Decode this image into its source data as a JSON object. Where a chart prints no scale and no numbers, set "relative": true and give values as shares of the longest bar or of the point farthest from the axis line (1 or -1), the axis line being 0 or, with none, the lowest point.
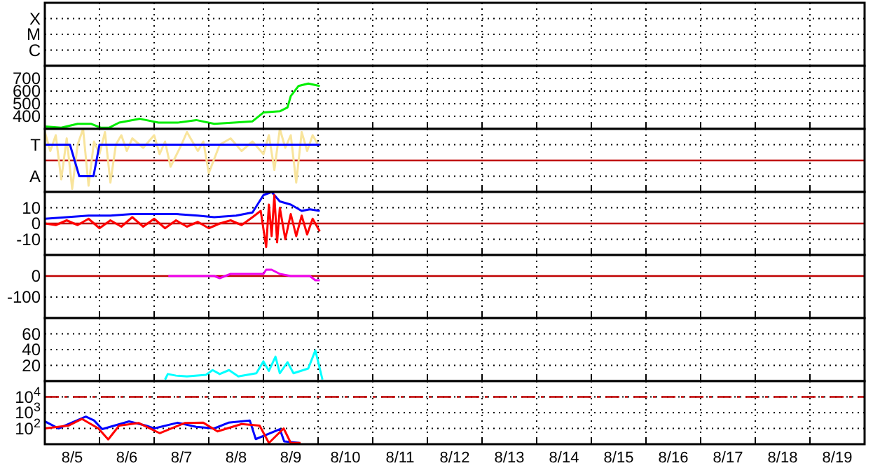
{
  "chart_data": [
    {
      "type": "other",
      "annotations": [
        "X",
        "M",
        "C"
      ]
    },
    {
      "type": "line",
      "ylim": [
        300,
        800
      ],
      "yticks": [
        400,
        500,
        600,
        700
      ],
      "xlim": [
        "--08-05T00:00",
        "--08-20T00:00"
      ],
      "xticks": [
        {
          "value": "--08-06T00:00",
          "label": null
        },
        {
          "value": "--08-07T00:00",
          "label": null
        },
        {
          "value": "--08-08T00:00",
          "label": null
        },
        {
          "value": "--08-09T00:00",
          "label": null
        },
        {
          "value": "--08-10T00:00",
          "label": null
        },
        {
          "value": "--08-11T00:00",
          "label": null
        },
        {
          "value": "--08-12T00:00",
          "label": null
        },
        {
          "value": "--08-13T00:00",
          "label": null
        },
        {
          "value": "--08-14T00:00",
          "label": null
        },
        {
          "value": "--08-15T00:00",
          "label": null
        },
        {
          "value": "--08-16T00:00",
          "label": null
        },
        {
          "value": "--08-17T00:00",
          "label": null
        },
        {
          "value": "--08-18T00:00",
          "label": null
        },
        {
          "value": "--08-19T00:00",
          "label": null
        }
      ],
      "tick_labels": "y",
      "grid": true,
      "series": [
        {
          "color": "#00ee00",
          "x": [
            "--08-05T00:00",
            "--08-05T07:12",
            "--08-05T14:24",
            "--08-05T20:24",
            "--08-06T00:30",
            "--08-06T04:19",
            "--08-06T08:38",
            "--08-06T17:46",
            "--08-07T01:55",
            "--08-07T10:19",
            "--08-07T18:29",
            "--08-08T02:24",
            "--08-08T11:02",
            "--08-08T19:12",
            "--08-09T00:00",
            "--08-09T07:12",
            "--08-09T10:34",
            "--08-09T12:00",
            "--08-09T15:22",
            "--08-09T19:41",
            "--08-10T00:45"
          ],
          "values": [
            320,
            310,
            340,
            340,
            310,
            310,
            350,
            380,
            350,
            350,
            370,
            340,
            350,
            360,
            430,
            440,
            470,
            560,
            640,
            660,
            640
          ]
        }
      ]
    },
    {
      "type": "line",
      "relative": true,
      "annotations": [
        "T",
        "A"
      ],
      "xlim": [
        "--08-05T00:00",
        "--08-20T00:00"
      ],
      "xticks": [
        {
          "value": "--08-06T00:00",
          "label": null
        },
        {
          "value": "--08-07T00:00",
          "label": null
        },
        {
          "value": "--08-08T00:00",
          "label": null
        },
        {
          "value": "--08-09T00:00",
          "label": null
        },
        {
          "value": "--08-10T00:00",
          "label": null
        },
        {
          "value": "--08-11T00:00",
          "label": null
        },
        {
          "value": "--08-12T00:00",
          "label": null
        },
        {
          "value": "--08-13T00:00",
          "label": null
        },
        {
          "value": "--08-14T00:00",
          "label": null
        },
        {
          "value": "--08-15T00:00",
          "label": null
        },
        {
          "value": "--08-16T00:00",
          "label": null
        },
        {
          "value": "--08-17T00:00",
          "label": null
        },
        {
          "value": "--08-18T00:00",
          "label": null
        },
        {
          "value": "--08-19T00:00",
          "label": null
        }
      ],
      "tick_labels": "y",
      "grid": true,
      "ref_lines": [
        {
          "axis": "y",
          "value": 0,
          "label": null,
          "color": "#c00000"
        }
      ],
      "series": [
        {
          "color": "#f8e49c",
          "x": [
            "--08-05T00:00",
            "--08-05T02:24",
            "--08-05T04:48",
            "--08-05T07:12",
            "--08-05T09:36",
            "--08-05T12:00",
            "--08-05T14:24",
            "--08-05T16:48",
            "--08-05T19:12",
            "--08-05T21:36",
            "--08-06T00:00",
            "--08-06T02:24",
            "--08-06T04:48",
            "--08-06T07:12",
            "--08-06T09:36",
            "--08-06T12:00",
            "--08-06T14:24",
            "--08-06T19:12",
            "--08-07T00:00",
            "--08-07T02:24",
            "--08-07T04:48",
            "--08-07T07:12",
            "--08-07T12:00",
            "--08-07T14:24",
            "--08-07T19:12",
            "--08-07T21:36",
            "--08-08T00:00",
            "--08-08T04:48",
            "--08-08T09:36",
            "--08-08T14:24",
            "--08-08T19:12",
            "--08-09T00:00",
            "--08-09T02:24",
            "--08-09T04:48",
            "--08-09T07:12",
            "--08-09T09:36",
            "--08-09T12:00",
            "--08-09T14:24",
            "--08-09T16:48",
            "--08-09T19:12",
            "--08-09T21:36",
            "--08-10T00:00"
          ],
          "values": [
            0.9,
            0.3,
            0.8,
            -0.6,
            0.7,
            -0.9,
            0.5,
            1.0,
            -0.8,
            0.6,
            0.2,
            0.9,
            -0.7,
            0.5,
            0.8,
            0.3,
            0.7,
            0.4,
            0.8,
            0.2,
            0.6,
            -0.2,
            0.5,
            0.9,
            0.3,
            0.6,
            -0.4,
            0.5,
            0.7,
            0.3,
            0.6,
            0.2,
            0.8,
            -0.3,
            1.0,
            0.4,
            0.8,
            -0.7,
            0.9,
            0.3,
            0.8,
            0.5
          ]
        },
        {
          "color": "#0000ff",
          "x": [
            "--08-05T00:00",
            "--08-05T11:02",
            "--08-05T15:07",
            "--08-05T21:22",
            "--08-06T00:00",
            "--08-10T00:45"
          ],
          "values": [
            0.5,
            0.5,
            -0.5,
            -0.5,
            0.5,
            0.5
          ]
        }
      ]
    },
    {
      "type": "line",
      "ylim": [
        -20,
        20
      ],
      "yticks": [
        10,
        0,
        -10
      ],
      "xlim": [
        "--08-05T00:00",
        "--08-20T00:00"
      ],
      "xticks": [
        {
          "value": "--08-06T00:00",
          "label": null
        },
        {
          "value": "--08-07T00:00",
          "label": null
        },
        {
          "value": "--08-08T00:00",
          "label": null
        },
        {
          "value": "--08-09T00:00",
          "label": null
        },
        {
          "value": "--08-10T00:00",
          "label": null
        },
        {
          "value": "--08-11T00:00",
          "label": null
        },
        {
          "value": "--08-12T00:00",
          "label": null
        },
        {
          "value": "--08-13T00:00",
          "label": null
        },
        {
          "value": "--08-14T00:00",
          "label": null
        },
        {
          "value": "--08-15T00:00",
          "label": null
        },
        {
          "value": "--08-16T00:00",
          "label": null
        },
        {
          "value": "--08-17T00:00",
          "label": null
        },
        {
          "value": "--08-18T00:00",
          "label": null
        },
        {
          "value": "--08-19T00:00",
          "label": null
        }
      ],
      "tick_labels": "y",
      "grid": true,
      "ref_lines": [
        {
          "axis": "y",
          "value": 0,
          "label": null,
          "color": "#c00000"
        }
      ],
      "series": [
        {
          "color": "#0000ff",
          "x": [
            "--08-05T00:00",
            "--08-05T09:36",
            "--08-05T19:12",
            "--08-06T04:48",
            "--08-06T14:24",
            "--08-07T00:00",
            "--08-07T09:36",
            "--08-07T19:12",
            "--08-08T02:24",
            "--08-08T12:00",
            "--08-08T19:12",
            "--08-09T00:00",
            "--08-09T03:36",
            "--08-09T07:12",
            "--08-09T12:00",
            "--08-09T16:48",
            "--08-09T20:24",
            "--08-10T00:45"
          ],
          "values": [
            3,
            4,
            5,
            5,
            6,
            6,
            6,
            5,
            4,
            5,
            7,
            18,
            20,
            14,
            12,
            8,
            9,
            8
          ]
        },
        {
          "color": "#ff0000",
          "x": [
            "--08-05T00:00",
            "--08-05T04:48",
            "--08-05T09:36",
            "--08-05T14:24",
            "--08-05T19:12",
            "--08-06T00:00",
            "--08-06T04:48",
            "--08-06T09:36",
            "--08-06T14:24",
            "--08-06T19:12",
            "--08-07T00:00",
            "--08-07T04:48",
            "--08-07T09:36",
            "--08-07T14:24",
            "--08-07T19:12",
            "--08-08T00:00",
            "--08-08T04:48",
            "--08-08T09:36",
            "--08-08T14:24",
            "--08-08T19:12",
            "--08-08T22:48",
            "--08-09T01:12",
            "--08-09T02:24",
            "--08-09T03:36",
            "--08-09T04:48",
            "--08-09T06:00",
            "--08-09T07:12",
            "--08-09T09:36",
            "--08-09T12:00",
            "--08-09T14:24",
            "--08-09T16:48",
            "--08-09T19:12",
            "--08-09T21:36",
            "--08-10T00:45"
          ],
          "values": [
            0,
            -1,
            2,
            -1,
            3,
            -3,
            2,
            -2,
            4,
            -2,
            3,
            -3,
            2,
            -2,
            1,
            -3,
            0,
            2,
            -1,
            4,
            8,
            -15,
            12,
            -8,
            18,
            -12,
            10,
            -10,
            6,
            -8,
            5,
            -7,
            3,
            -5
          ]
        }
      ]
    },
    {
      "type": "line",
      "ylim": [
        -200,
        100
      ],
      "yticks": [
        0,
        -100
      ],
      "xlim": [
        "--08-05T00:00",
        "--08-20T00:00"
      ],
      "xticks": [
        {
          "value": "--08-06T00:00",
          "label": null
        },
        {
          "value": "--08-07T00:00",
          "label": null
        },
        {
          "value": "--08-08T00:00",
          "label": null
        },
        {
          "value": "--08-09T00:00",
          "label": null
        },
        {
          "value": "--08-10T00:00",
          "label": null
        },
        {
          "value": "--08-11T00:00",
          "label": null
        },
        {
          "value": "--08-12T00:00",
          "label": null
        },
        {
          "value": "--08-13T00:00",
          "label": null
        },
        {
          "value": "--08-14T00:00",
          "label": null
        },
        {
          "value": "--08-15T00:00",
          "label": null
        },
        {
          "value": "--08-16T00:00",
          "label": null
        },
        {
          "value": "--08-17T00:00",
          "label": null
        },
        {
          "value": "--08-18T00:00",
          "label": null
        },
        {
          "value": "--08-19T00:00",
          "label": null
        }
      ],
      "tick_labels": "y",
      "grid": true,
      "ref_lines": [
        {
          "axis": "y",
          "value": 0,
          "label": null,
          "color": "#c00000"
        }
      ],
      "series": [
        {
          "color": "#ee00ee",
          "x": [
            "--08-07T06:14",
            "--08-07T07:12",
            "--08-07T16:48",
            "--08-08T02:24",
            "--08-08T04:48",
            "--08-08T09:36",
            "--08-08T14:24",
            "--08-09T00:00",
            "--08-09T01:12",
            "--08-09T03:36",
            "--08-09T07:12",
            "--08-09T12:00",
            "--08-09T16:48",
            "--08-09T20:24",
            "--08-09T22:48",
            "--08-10T00:45"
          ],
          "values": [
            0,
            0,
            0,
            0,
            -10,
            10,
            10,
            10,
            30,
            30,
            10,
            0,
            0,
            0,
            -20,
            -20
          ]
        }
      ]
    },
    {
      "type": "line",
      "ylim": [
        0,
        80
      ],
      "yticks": [
        20,
        40,
        60
      ],
      "xlim": [
        "--08-05T00:00",
        "--08-20T00:00"
      ],
      "xticks": [
        {
          "value": "--08-06T00:00",
          "label": null
        },
        {
          "value": "--08-07T00:00",
          "label": null
        },
        {
          "value": "--08-08T00:00",
          "label": null
        },
        {
          "value": "--08-09T00:00",
          "label": null
        },
        {
          "value": "--08-10T00:00",
          "label": null
        },
        {
          "value": "--08-11T00:00",
          "label": null
        },
        {
          "value": "--08-12T00:00",
          "label": null
        },
        {
          "value": "--08-13T00:00",
          "label": null
        },
        {
          "value": "--08-14T00:00",
          "label": null
        },
        {
          "value": "--08-15T00:00",
          "label": null
        },
        {
          "value": "--08-16T00:00",
          "label": null
        },
        {
          "value": "--08-17T00:00",
          "label": null
        },
        {
          "value": "--08-18T00:00",
          "label": null
        },
        {
          "value": "--08-19T00:00",
          "label": null
        }
      ],
      "tick_labels": "y",
      "grid": true,
      "series": [
        {
          "color": "#00ffff",
          "x": [
            "--08-07T04:48",
            "--08-07T06:00",
            "--08-07T09:36",
            "--08-07T14:24",
            "--08-07T22:48",
            "--08-08T01:40",
            "--08-08T04:48",
            "--08-08T08:53",
            "--08-08T12:58",
            "--08-08T20:53",
            "--08-09T00:00",
            "--08-09T02:24",
            "--08-09T05:17",
            "--08-09T07:12",
            "--08-09T10:34",
            "--08-09T13:12",
            "--08-09T19:41",
            "--08-09T22:48",
            "--08-10T01:55"
          ],
          "values": [
            2,
            9,
            7,
            6,
            8,
            14,
            9,
            14,
            6,
            10,
            25,
            13,
            31,
            10,
            24,
            10,
            16,
            39,
            2
          ]
        }
      ]
    },
    {
      "type": "line",
      "log": true,
      "ylim": [
        10,
        100000
      ],
      "yticks": [
        {
          "value": 100,
          "label": "10$^{2}$"
        },
        {
          "value": 1000,
          "label": "10$^{3}$"
        },
        {
          "value": 10000,
          "label": "10$^{4}$"
        }
      ],
      "xlim": [
        "--08-05T00:00",
        "--08-20T00:00"
      ],
      "xticks": [
        {
          "value": "--08-05T12:00",
          "label": "8/5"
        },
        {
          "value": "--08-06T00:00",
          "label": null
        },
        {
          "value": "--08-06T12:00",
          "label": "8/6"
        },
        {
          "value": "--08-07T00:00",
          "label": null
        },
        {
          "value": "--08-07T12:00",
          "label": "8/7"
        },
        {
          "value": "--08-08T00:00",
          "label": null
        },
        {
          "value": "--08-08T12:00",
          "label": "8/8"
        },
        {
          "value": "--08-09T00:00",
          "label": null
        },
        {
          "value": "--08-09T12:00",
          "label": "8/9"
        },
        {
          "value": "--08-10T00:00",
          "label": null
        },
        {
          "value": "--08-10T12:00",
          "label": "8/10"
        },
        {
          "value": "--08-11T00:00",
          "label": null
        },
        {
          "value": "--08-11T12:00",
          "label": "8/11"
        },
        {
          "value": "--08-12T00:00",
          "label": null
        },
        {
          "value": "--08-12T12:00",
          "label": "8/12"
        },
        {
          "value": "--08-13T00:00",
          "label": null
        },
        {
          "value": "--08-13T12:00",
          "label": "8/13"
        },
        {
          "value": "--08-14T00:00",
          "label": null
        },
        {
          "value": "--08-14T12:00",
          "label": "8/14"
        },
        {
          "value": "--08-15T00:00",
          "label": null
        },
        {
          "value": "--08-15T12:00",
          "label": "8/15"
        },
        {
          "value": "--08-16T00:00",
          "label": null
        },
        {
          "value": "--08-16T12:00",
          "label": "8/16"
        },
        {
          "value": "--08-17T00:00",
          "label": null
        },
        {
          "value": "--08-17T12:00",
          "label": "8/17"
        },
        {
          "value": "--08-18T00:00",
          "label": null
        },
        {
          "value": "--08-18T12:00",
          "label": "8/18"
        },
        {
          "value": "--08-19T00:00",
          "label": null
        },
        {
          "value": "--08-19T12:00",
          "label": "8/19"
        }
      ],
      "grid": true,
      "ref_lines": [
        {
          "axis": "y",
          "value": 10000,
          "label": null,
          "color": "#c00000",
          "line_style": "dashed"
        }
      ],
      "series": [
        {
          "color": "#0000ff",
          "x": [
            "--08-05T00:00",
            "--08-05T06:00",
            "--08-05T18:00",
            "--08-05T21:36",
            "--08-06T01:12",
            "--08-06T12:58",
            "--08-06T20:24",
            "--08-07T00:00",
            "--08-07T10:19",
            "--08-07T18:29",
            "--08-08T02:24",
            "--08-08T08:38",
            "--08-08T18:00",
            "--08-08T20:38",
            "--08-09T07:12",
            "--08-09T09:07",
            "--08-09T15:50"
          ],
          "values": [
            280,
            100,
            560,
            320,
            90,
            280,
            150,
            100,
            230,
            125,
            100,
            230,
            320,
            21,
            90,
            15,
            12
          ]
        },
        {
          "color": "#ff0000",
          "x": [
            "--08-05T00:00",
            "--08-05T10:19",
            "--08-05T16:19",
            "--08-05T23:31",
            "--08-06T03:50",
            "--08-06T08:38",
            "--08-06T17:17",
            "--08-07T02:24",
            "--08-07T13:26",
            "--08-07T21:36",
            "--08-08T03:50",
            "--08-08T14:24",
            "--08-08T22:19",
            "--08-09T02:24",
            "--08-09T08:53",
            "--08-09T12:00",
            "--08-09T16:19"
          ],
          "values": [
            100,
            150,
            400,
            100,
            20,
            150,
            220,
            50,
            220,
            230,
            65,
            190,
            150,
            12,
            100,
            12,
            12
          ]
        }
      ]
    }
  ]
}
